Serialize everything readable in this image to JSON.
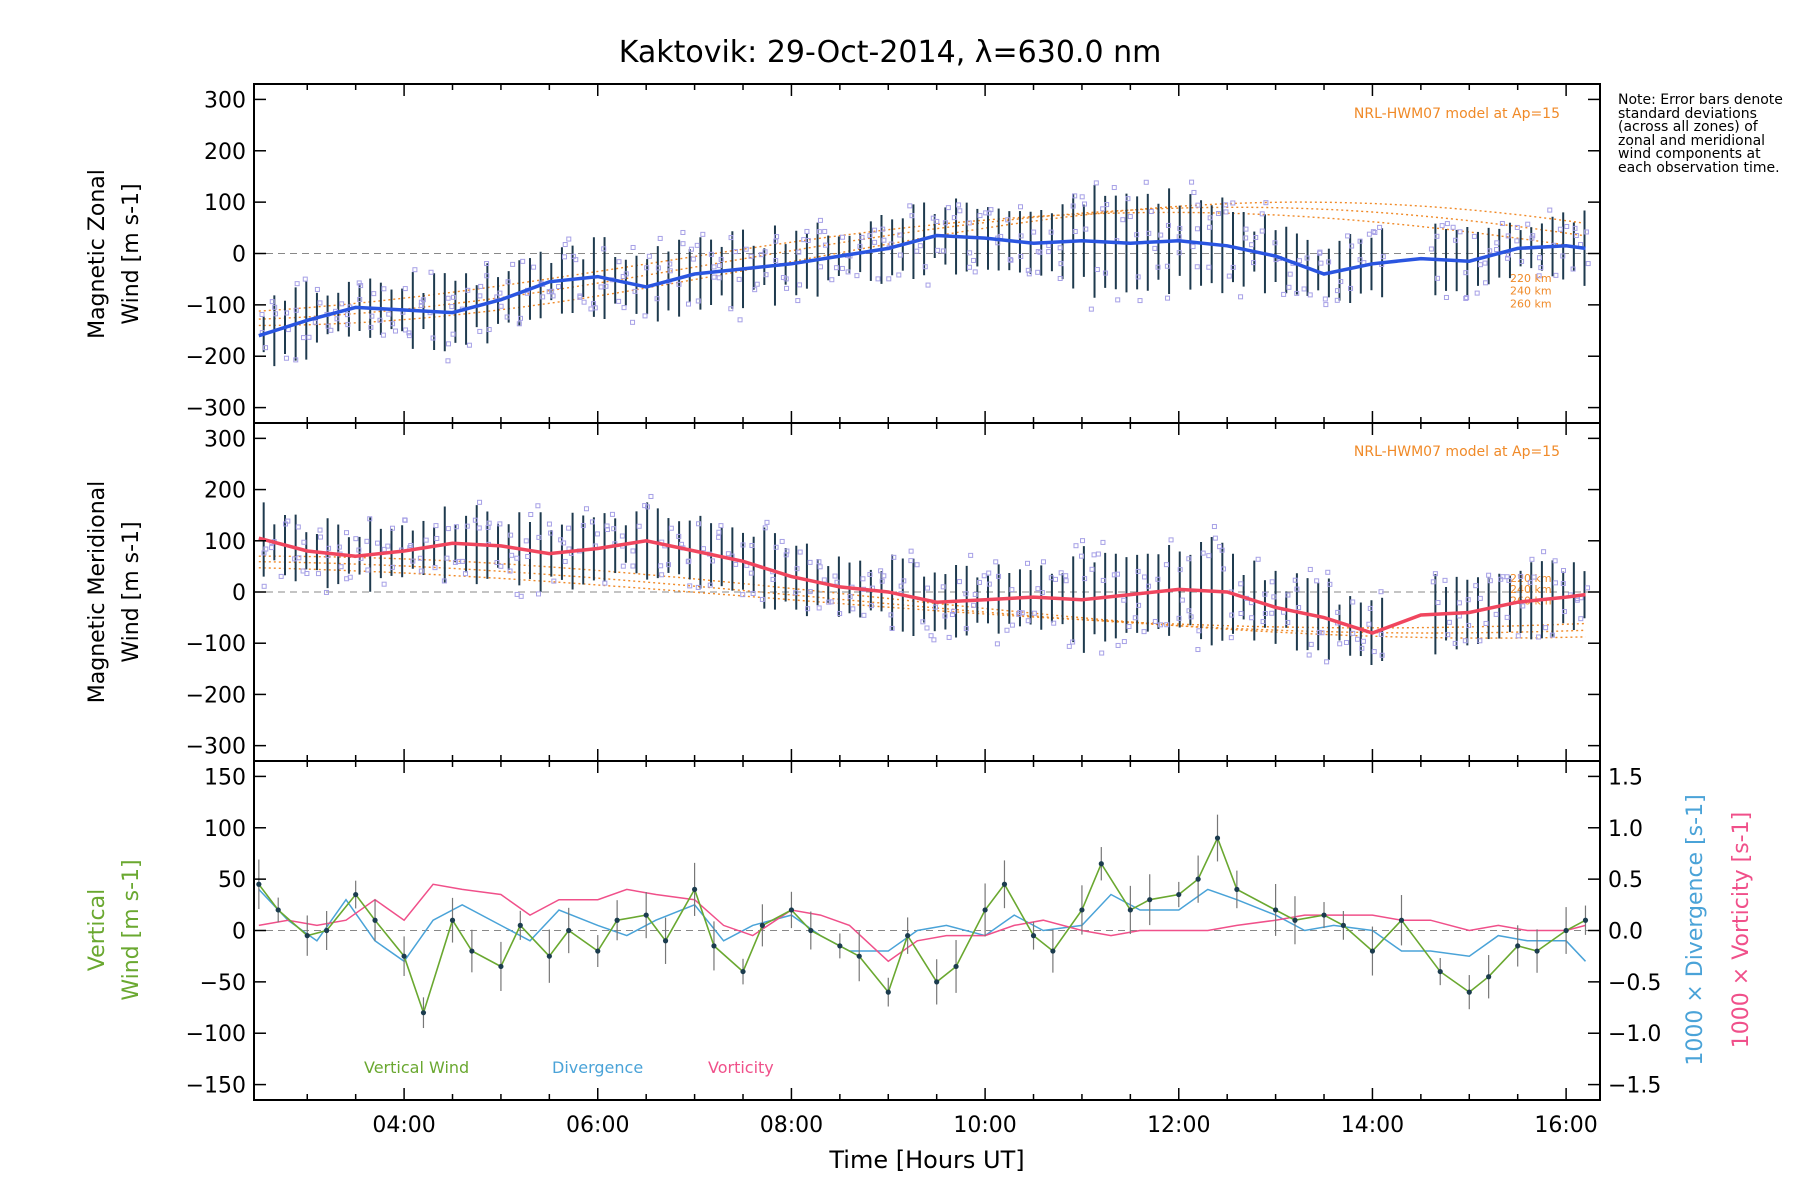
{
  "title": "Kaktovik: 29-Oct-2014, λ=630.0 nm",
  "note": "Note: Error bars denote standard deviations (across all zones) of zonal and meridional wind components at each observation time.",
  "xlabel": "Time [Hours UT]",
  "x_ticks": [
    "04:00",
    "06:00",
    "08:00",
    "10:00",
    "12:00",
    "14:00",
    "16:00"
  ],
  "colors": {
    "zonal": "#2a55e0",
    "meridional": "#f0465e",
    "vertical": "#6aa830",
    "divergence": "#4aa3d8",
    "vorticity": "#f0508a",
    "model": "#f08a28",
    "zone_points": "#a6a0e6",
    "error_bars": "#1e3a4e"
  },
  "chart_data": [
    {
      "type": "line",
      "panel": "zonal",
      "ylabel_line1": "Magnetic Zonal",
      "ylabel_line2": "Wind [m s-1]",
      "ylim": [
        -330,
        330
      ],
      "y_ticks": [
        "300",
        "200",
        "100",
        "0",
        "−100",
        "−200",
        "−300"
      ],
      "model_label": "NRL-HWM07 model at Ap=15",
      "model_altitudes": [
        "220 km",
        "240 km",
        "260 km"
      ],
      "grid": false,
      "series": [
        {
          "x": [
            2.5,
            3.0,
            3.5,
            4.0,
            4.5,
            5.0,
            5.5,
            6.0,
            6.5,
            7.0,
            7.5,
            8.0,
            8.5,
            9.0,
            9.5,
            10.0,
            10.5,
            11.0,
            11.5,
            12.0,
            12.5,
            13.0,
            13.5,
            14.0,
            14.5,
            15.0,
            15.5,
            16.0,
            16.2
          ],
          "y": [
            -160,
            -130,
            -105,
            -110,
            -115,
            -90,
            -55,
            -45,
            -65,
            -40,
            -30,
            -20,
            -5,
            10,
            35,
            30,
            20,
            25,
            20,
            25,
            15,
            -5,
            -40,
            -20,
            -10,
            -15,
            10,
            15,
            10
          ]
        }
      ]
    },
    {
      "type": "line",
      "panel": "meridional",
      "ylabel_line1": "Magnetic Meridional",
      "ylabel_line2": "Wind [m s-1]",
      "ylim": [
        -330,
        330
      ],
      "y_ticks": [
        "300",
        "200",
        "100",
        "0",
        "−100",
        "−200",
        "−300"
      ],
      "model_label": "NRL-HWM07 model at Ap=15",
      "model_altitudes": [
        "220 km",
        "240 km",
        "260 km"
      ],
      "grid": false,
      "series": [
        {
          "x": [
            2.5,
            3.0,
            3.5,
            4.0,
            4.5,
            5.0,
            5.5,
            6.0,
            6.5,
            7.0,
            7.5,
            8.0,
            8.5,
            9.0,
            9.5,
            10.0,
            10.5,
            11.0,
            11.5,
            12.0,
            12.5,
            13.0,
            13.5,
            14.0,
            14.5,
            15.0,
            15.5,
            16.0,
            16.2
          ],
          "y": [
            105,
            80,
            70,
            80,
            95,
            90,
            75,
            85,
            100,
            80,
            60,
            30,
            10,
            0,
            -20,
            -15,
            -10,
            -15,
            -5,
            5,
            0,
            -30,
            -50,
            -80,
            -45,
            -40,
            -20,
            -10,
            -5
          ]
        }
      ]
    },
    {
      "type": "line",
      "panel": "vertical",
      "ylabel_line1": "Vertical",
      "ylabel_line2": "Wind [m s-1]",
      "ylim": [
        -165,
        165
      ],
      "y_ticks": [
        "150",
        "100",
        "50",
        "0",
        "−50",
        "−100",
        "−150"
      ],
      "y2_label_divergence": "1000 × Divergence [s-1]",
      "y2_label_vorticity": "1000 × Vorticity [s-1]",
      "y2lim": [
        -1.65,
        1.65
      ],
      "y2_ticks": [
        "1.5",
        "1.0",
        "0.5",
        "0.0",
        "−0.5",
        "−1.0",
        "−1.5"
      ],
      "legend": [
        "Vertical Wind",
        "Divergence",
        "Vorticity"
      ],
      "legend_placement": "bottom-left",
      "series": [
        {
          "name": "Vertical Wind",
          "x": [
            2.5,
            2.7,
            3.0,
            3.2,
            3.5,
            3.7,
            4.0,
            4.2,
            4.5,
            4.7,
            5.0,
            5.2,
            5.5,
            5.7,
            6.0,
            6.2,
            6.5,
            6.7,
            7.0,
            7.2,
            7.5,
            7.7,
            8.0,
            8.2,
            8.5,
            8.7,
            9.0,
            9.2,
            9.5,
            9.7,
            10.0,
            10.2,
            10.5,
            10.7,
            11.0,
            11.2,
            11.5,
            11.7,
            12.0,
            12.2,
            12.4,
            12.6,
            13.0,
            13.2,
            13.5,
            13.7,
            14.0,
            14.3,
            14.7,
            15.0,
            15.2,
            15.5,
            15.7,
            16.0,
            16.2
          ],
          "y": [
            45,
            20,
            -5,
            0,
            35,
            10,
            -25,
            -80,
            10,
            -20,
            -35,
            5,
            -25,
            0,
            -20,
            10,
            15,
            -10,
            40,
            -15,
            -40,
            5,
            20,
            0,
            -15,
            -25,
            -60,
            -5,
            -50,
            -35,
            20,
            45,
            -5,
            -20,
            20,
            65,
            20,
            30,
            35,
            50,
            90,
            40,
            20,
            10,
            15,
            5,
            -20,
            10,
            -40,
            -60,
            -45,
            -15,
            -20,
            0,
            10
          ]
        },
        {
          "name": "Divergence",
          "x": [
            2.5,
            2.8,
            3.1,
            3.4,
            3.7,
            4.0,
            4.3,
            4.6,
            5.0,
            5.3,
            5.6,
            6.0,
            6.3,
            6.6,
            7.0,
            7.3,
            7.6,
            8.0,
            8.3,
            8.6,
            9.0,
            9.3,
            9.6,
            10.0,
            10.3,
            10.6,
            11.0,
            11.3,
            11.6,
            12.0,
            12.3,
            12.6,
            13.0,
            13.3,
            13.6,
            14.0,
            14.3,
            14.6,
            15.0,
            15.3,
            15.6,
            16.0,
            16.2
          ],
          "y": [
            0.4,
            0.1,
            -0.1,
            0.3,
            -0.1,
            -0.3,
            0.1,
            0.25,
            0.05,
            -0.1,
            0.2,
            0.05,
            -0.05,
            0.1,
            0.25,
            -0.1,
            0.05,
            0.15,
            -0.05,
            -0.2,
            -0.2,
            0.0,
            0.05,
            -0.05,
            0.15,
            0.0,
            0.05,
            0.35,
            0.2,
            0.2,
            0.4,
            0.3,
            0.15,
            0.0,
            0.05,
            0.0,
            -0.2,
            -0.2,
            -0.25,
            -0.05,
            -0.1,
            -0.1,
            -0.3
          ]
        },
        {
          "name": "Vorticity",
          "x": [
            2.5,
            2.8,
            3.1,
            3.4,
            3.7,
            4.0,
            4.3,
            4.6,
            5.0,
            5.3,
            5.6,
            6.0,
            6.3,
            6.6,
            7.0,
            7.3,
            7.6,
            8.0,
            8.3,
            8.6,
            9.0,
            9.3,
            9.6,
            10.0,
            10.3,
            10.6,
            11.0,
            11.3,
            11.6,
            12.0,
            12.3,
            12.6,
            13.0,
            13.3,
            13.6,
            14.0,
            14.3,
            14.6,
            15.0,
            15.3,
            15.6,
            16.0,
            16.2
          ],
          "y": [
            0.05,
            0.1,
            0.05,
            0.1,
            0.3,
            0.1,
            0.45,
            0.4,
            0.35,
            0.15,
            0.3,
            0.3,
            0.4,
            0.35,
            0.3,
            0.05,
            -0.05,
            0.2,
            0.15,
            0.05,
            -0.3,
            -0.1,
            -0.05,
            -0.05,
            0.05,
            0.1,
            0.0,
            -0.05,
            0.0,
            0.0,
            0.0,
            0.05,
            0.1,
            0.15,
            0.15,
            0.15,
            0.1,
            0.1,
            0.0,
            0.05,
            0.0,
            0.0,
            0.05
          ]
        }
      ]
    }
  ]
}
